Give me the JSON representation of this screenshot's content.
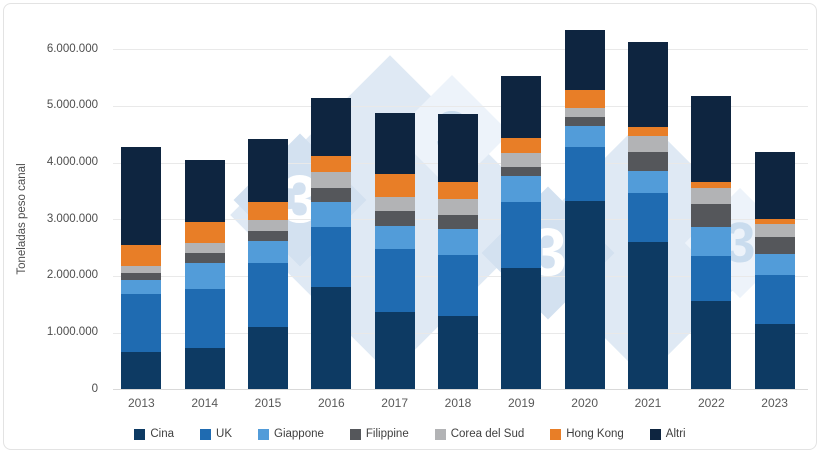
{
  "chart_data": {
    "type": "bar",
    "stacked": true,
    "title": "",
    "xlabel": "",
    "ylabel": "Toneladas peso canal",
    "categories": [
      "2013",
      "2014",
      "2015",
      "2016",
      "2017",
      "2018",
      "2019",
      "2020",
      "2021",
      "2022",
      "2023"
    ],
    "series": [
      {
        "name": "Cina",
        "color": "#0d3a63",
        "values": [
          660000,
          720000,
          1090000,
          1810000,
          1370000,
          1290000,
          2140000,
          3330000,
          2590000,
          1560000,
          1150000
        ]
      },
      {
        "name": "UK",
        "color": "#1f6bb1",
        "values": [
          1020000,
          1050000,
          1130000,
          1060000,
          1100000,
          1080000,
          1170000,
          950000,
          880000,
          790000,
          870000
        ]
      },
      {
        "name": "Giappone",
        "color": "#529cd9",
        "values": [
          250000,
          450000,
          400000,
          440000,
          410000,
          460000,
          450000,
          370000,
          390000,
          510000,
          370000
        ]
      },
      {
        "name": "Filippine",
        "color": "#55575b",
        "values": [
          130000,
          180000,
          180000,
          240000,
          260000,
          250000,
          170000,
          150000,
          330000,
          410000,
          290000
        ]
      },
      {
        "name": "Corea del Sud",
        "color": "#b2b3b5",
        "values": [
          120000,
          190000,
          190000,
          280000,
          260000,
          280000,
          240000,
          170000,
          280000,
          280000,
          240000
        ]
      },
      {
        "name": "Hong Kong",
        "color": "#e87e27",
        "values": [
          370000,
          370000,
          320000,
          280000,
          400000,
          290000,
          260000,
          310000,
          150000,
          100000,
          80000
        ]
      },
      {
        "name": "Altri",
        "color": "#0e2540",
        "values": [
          1720000,
          1080000,
          1100000,
          1030000,
          1070000,
          1200000,
          1100000,
          1060000,
          1510000,
          1530000,
          1190000
        ]
      }
    ],
    "ylim": [
      0,
      6500000
    ],
    "ytick_step": 1000000,
    "ytick_labels": [
      "0",
      "1.000.000",
      "2.000.000",
      "3.000.000",
      "4.000.000",
      "5.000.000",
      "6.000.000"
    ],
    "grid": true,
    "legend_position": "bottom"
  },
  "legend": {
    "items": [
      "Cina",
      "UK",
      "Giappone",
      "Filippine",
      "Corea del Sud",
      "Hong Kong",
      "Altri"
    ]
  },
  "watermark": {
    "text": "3",
    "diamond_color": "#dfe9f4",
    "accent_color": "#d3e1f0",
    "accent_light": "#edf3fa",
    "glyph_color": "#ffffff",
    "glyph_light": "#c9dcee"
  },
  "frame": {
    "border_color": "#e3e3e3",
    "background": "#ffffff"
  },
  "axis_colors": {
    "grid": "#e9e9e9",
    "baseline": "#d9d9d9",
    "tick_text": "#4d4d4d",
    "category_text": "#595959",
    "legend_text": "#404040"
  }
}
